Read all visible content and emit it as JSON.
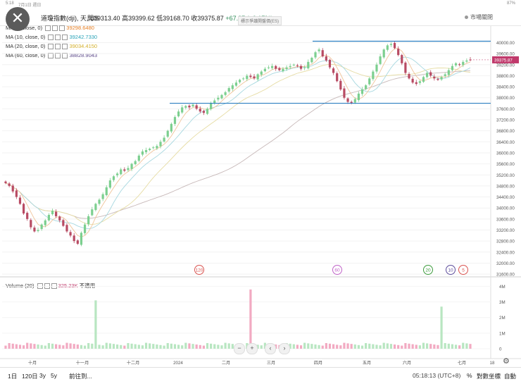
{
  "status_bar": {
    "time": "5:18",
    "date": "7月1日 週日",
    "battery": "87%"
  },
  "header": {
    "title": "道瓊指數(dji), 天, US",
    "open_label": "開",
    "open": "39313.40",
    "high_label": "高",
    "high": "39399.62",
    "low_label": "低",
    "low": "39168.70",
    "close_label": "收",
    "close": "39375.87",
    "change": "+67.87 (+0.17%)",
    "market_status": "市場關閉",
    "tooltip": "標示爭議開盤價(ES)"
  },
  "indicators": [
    {
      "label": "MA (5, close, 0)",
      "value": "39298.6480",
      "color": "#e67e22"
    },
    {
      "label": "MA (10, close, 0)",
      "value": "39242.7330",
      "color": "#2aa3b8"
    },
    {
      "label": "MA (20, close, 0)",
      "value": "39034.4150",
      "color": "#d4b02c"
    },
    {
      "label": "MA (60, close, 0)",
      "value": "38828.9043",
      "color": "#5e4b8b"
    }
  ],
  "volume_indicator": {
    "label": "Volume (20)",
    "value": "325.23K",
    "status": "不適用"
  },
  "chart_data": {
    "type": "candlestick",
    "price_ylim": [
      31500,
      40600
    ],
    "price_ticks": [
      "40000.00",
      "39600.00",
      "39200.00",
      "38800.00",
      "38400.00",
      "38000.00",
      "37600.00",
      "37200.00",
      "36800.00",
      "36400.00",
      "36000.00",
      "35600.00",
      "35200.00",
      "34800.00",
      "34400.00",
      "34000.00",
      "33600.00",
      "33200.00",
      "32800.00",
      "32400.00",
      "32000.00",
      "31600.00"
    ],
    "last_price": "39375.87",
    "volume_ticks": [
      "4M",
      "3M",
      "2M",
      "1M",
      "0"
    ],
    "volume_ylim": [
      0,
      4200000
    ],
    "x_ticks": [
      "十月",
      "十一月",
      "十二月",
      "2024",
      "二月",
      "三月",
      "四月",
      "五月",
      "六月",
      "七月",
      "18"
    ],
    "horizontal_lines": [
      40050,
      37800
    ],
    "close_series": [
      34900,
      34800,
      34600,
      34400,
      34150,
      33800,
      33600,
      33300,
      33150,
      33200,
      33400,
      33550,
      33750,
      33900,
      33700,
      33550,
      33350,
      33150,
      33000,
      32800,
      32700,
      33100,
      33400,
      33700,
      33950,
      34150,
      34300,
      34500,
      34750,
      35000,
      35150,
      35250,
      35400,
      35350,
      35450,
      35600,
      35700,
      35900,
      36050,
      36100,
      36150,
      36200,
      36250,
      36400,
      36550,
      36800,
      37050,
      37300,
      37500,
      37650,
      37700,
      37650,
      37750,
      37600,
      37500,
      37450,
      37600,
      37800,
      37900,
      38000,
      38100,
      38200,
      38350,
      38450,
      38550,
      38650,
      38700,
      38800,
      38750,
      38700,
      38850,
      38950,
      39050,
      39100,
      39150,
      39050,
      39000,
      39050,
      39100,
      39150,
      39200,
      39150,
      39050,
      39100,
      39300,
      39450,
      39650,
      39750,
      39500,
      39350,
      39100,
      38900,
      38600,
      38300,
      38000,
      37850,
      37800,
      37950,
      38150,
      38300,
      38450,
      38700,
      38950,
      39200,
      39500,
      39750,
      39900,
      39950,
      39800,
      39550,
      39250,
      38900,
      38700,
      38550,
      38500,
      38600,
      38750,
      38900,
      38800,
      38700,
      38650,
      38750,
      38850,
      39000,
      39150,
      39250,
      39200,
      39300,
      39350,
      39375
    ],
    "volume_spikes": [
      {
        "index": 25,
        "value": 3100000
      },
      {
        "index": 68,
        "value": 3800000
      },
      {
        "index": 121,
        "value": 2700000
      }
    ],
    "event_markers": [
      {
        "label": "120",
        "color": "#d9534f"
      },
      {
        "label": "60",
        "color": "#c062c8"
      },
      {
        "label": "20",
        "color": "#3c9b3c"
      },
      {
        "label": "10",
        "color": "#5b4b9b"
      },
      {
        "label": "5",
        "color": "#d9534f"
      }
    ],
    "up_color": "#7ccf8f",
    "down_color": "#b84b63",
    "vol_up_color": "#b8e6c1",
    "vol_down_color": "#f2aac2"
  },
  "nav": {
    "zoom_out": "−",
    "zoom_in": "+",
    "prev": "‹",
    "next": "›"
  },
  "footer": {
    "ranges": [
      "1日",
      "120日",
      "3y",
      "5y"
    ],
    "goto": "前往到...",
    "time": "05:18:13 (UTC+8)",
    "percent": "%",
    "log": "對數坐標",
    "auto": "自動"
  }
}
